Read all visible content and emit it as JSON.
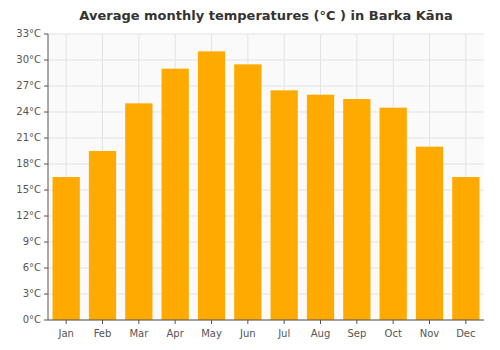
{
  "chart_data": {
    "type": "bar",
    "title": "Average monthly temperatures (°C ) in Barka Kāna",
    "categories": [
      "Jan",
      "Feb",
      "Mar",
      "Apr",
      "May",
      "Jun",
      "Jul",
      "Aug",
      "Sep",
      "Oct",
      "Nov",
      "Dec"
    ],
    "values": [
      16.5,
      19.5,
      25.0,
      29.0,
      31.0,
      29.5,
      26.5,
      26.0,
      25.5,
      24.5,
      20.0,
      16.5
    ],
    "color": "#FFAA00",
    "ylim": [
      0,
      33
    ],
    "yticks": [
      {
        "value": 0,
        "label": "0°C"
      },
      {
        "value": 3,
        "label": "3°C"
      },
      {
        "value": 6,
        "label": "6°C"
      },
      {
        "value": 9,
        "label": "9°C"
      },
      {
        "value": 12,
        "label": "12°C"
      },
      {
        "value": 15,
        "label": "15°C"
      },
      {
        "value": 18,
        "label": "18°C"
      },
      {
        "value": 21,
        "label": "21°C"
      },
      {
        "value": 24,
        "label": "24°C"
      },
      {
        "value": 27,
        "label": "27°C"
      },
      {
        "value": 30,
        "label": "30°C"
      },
      {
        "value": 33,
        "label": "33°C"
      }
    ],
    "grid": true
  }
}
